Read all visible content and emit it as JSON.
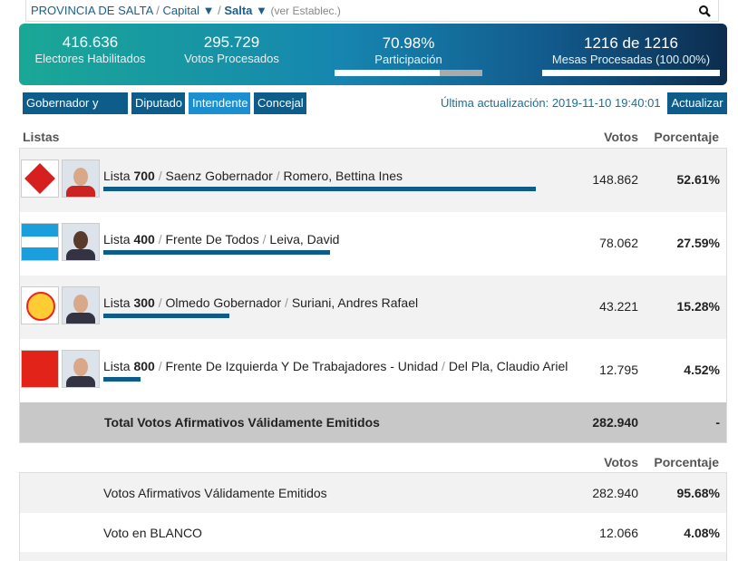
{
  "breadcrumb": {
    "province": "PROVINCIA DE SALTA",
    "separator": "/",
    "department": "Capital ▼",
    "municipality": "Salta ▼",
    "establishment": "(ver Establec.)"
  },
  "summary": {
    "electores": {
      "value": "416.636",
      "label": "Electores Habilitados"
    },
    "votos": {
      "value": "295.729",
      "label": "Votos Procesados"
    },
    "participacion": {
      "value": 70.98,
      "value_label": "70.98%",
      "label": "Participación"
    },
    "mesas": {
      "value": "1216 de 1216",
      "label": "Mesas Procesadas (100.00%)",
      "percent": 100
    }
  },
  "tabs": [
    "Gobernador y Vice",
    "Diputado",
    "Intendente",
    "Concejal"
  ],
  "active_tab": 2,
  "last_update": "Última actualización: 2019-11-10 19:40:01",
  "refresh_button": "Actualizar",
  "table": {
    "headers": [
      "Listas",
      "Votos",
      "Porcentaje"
    ],
    "list_prefix": "Lista",
    "rows": [
      {
        "number": "700",
        "party": "Saenz Gobernador",
        "candidate": "Romero, Bettina Ines",
        "votes": "148.862",
        "percent": 52.61,
        "percent_label": "52.61%"
      },
      {
        "number": "400",
        "party": "Frente De Todos",
        "candidate": "Leiva, David",
        "votes": "78.062",
        "percent": 27.59,
        "percent_label": "27.59%"
      },
      {
        "number": "300",
        "party": "Olmedo Gobernador",
        "candidate": "Suriani, Andres Rafael",
        "votes": "43.221",
        "percent": 15.28,
        "percent_label": "15.28%"
      },
      {
        "number": "800",
        "party": "Frente De Izquierda Y De Trabajadores - Unidad",
        "candidate": "Del Pla, Claudio Ariel",
        "votes": "12.795",
        "percent": 4.52,
        "percent_label": "4.52%"
      }
    ],
    "total": {
      "label": "Total Votos Afirmativos Válidamente Emitidos",
      "votes": "282.940",
      "percent": "-"
    }
  },
  "summary_table": {
    "headers": [
      "Votos",
      "Porcentaje"
    ],
    "rows": [
      {
        "label": "Votos Afirmativos Válidamente Emitidos",
        "votes": "282.940",
        "percent": "95.68%"
      },
      {
        "label": "Voto en BLANCO",
        "votes": "12.066",
        "percent": "4.08%"
      }
    ]
  }
}
